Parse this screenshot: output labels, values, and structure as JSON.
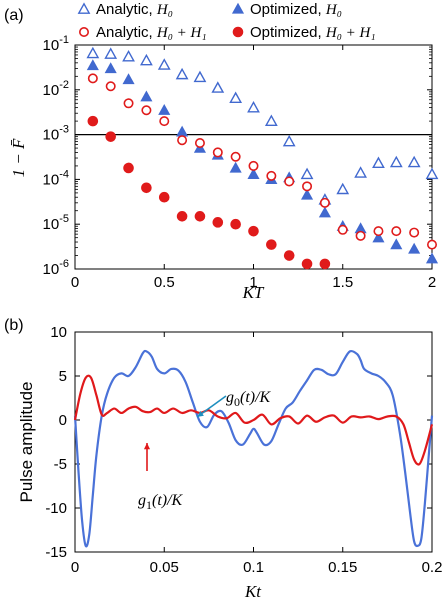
{
  "chart_data": [
    {
      "panel_label": "(a)",
      "type": "scatter",
      "xlabel": "KT",
      "ylabel": "1 − F̄",
      "xlim": [
        0,
        2
      ],
      "ylim": [
        1e-06,
        0.1
      ],
      "yscale": "log",
      "x_ticks": [
        "0",
        "0.5",
        "1",
        "1.5",
        "2"
      ],
      "x_tick_values": [
        0,
        0.5,
        1,
        1.5,
        2
      ],
      "y_ticks": [
        "10-6",
        "10-5",
        "10-4",
        "10-3",
        "10-2",
        "10-1"
      ],
      "y_tick_values": [
        1e-06,
        1e-05,
        0.0001,
        0.001,
        0.01,
        0.1
      ],
      "reference_line": 0.001,
      "legend_placement": "top, two columns",
      "series": [
        {
          "name": "Analytic, H0",
          "name_text": "Analytic, ",
          "name_math": "H₀",
          "marker": "open-triangle",
          "color": "#4169cf",
          "x": [
            0.1,
            0.2,
            0.3,
            0.4,
            0.5,
            0.6,
            0.7,
            0.8,
            0.9,
            1.0,
            1.1,
            1.2,
            1.3,
            1.4,
            1.5,
            1.6,
            1.7,
            1.8,
            1.9,
            2.0
          ],
          "y": [
            0.065,
            0.063,
            0.055,
            0.045,
            0.036,
            0.022,
            0.019,
            0.011,
            0.0065,
            0.004,
            0.002,
            0.0007,
            0.00013,
            3.5e-05,
            6e-05,
            0.00014,
            0.00023,
            0.00024,
            0.00024,
            0.00013
          ]
        },
        {
          "name": "Optimized, H0",
          "name_text": "Optimized, ",
          "name_math": "H₀",
          "marker": "filled-triangle",
          "color": "#4169cf",
          "x": [
            0.1,
            0.2,
            0.3,
            0.4,
            0.5,
            0.6,
            0.7,
            0.8,
            0.9,
            1.0,
            1.1,
            1.2,
            1.3,
            1.4,
            1.5,
            1.6,
            1.7,
            1.8,
            1.9,
            2.0
          ],
          "y": [
            0.035,
            0.03,
            0.017,
            0.007,
            0.0035,
            0.00115,
            0.0005,
            0.00035,
            0.00018,
            0.00013,
            0.0001,
            0.00011,
            4.5e-05,
            1.8e-05,
            9e-06,
            8e-06,
            5e-06,
            3.5e-06,
            2.8e-06,
            1.7e-06
          ]
        },
        {
          "name": "Analytic, H0 + H1",
          "name_text": "Analytic, ",
          "name_math": "H₀ + H₁",
          "marker": "open-circle",
          "color": "#e01b1b",
          "x": [
            0.1,
            0.2,
            0.3,
            0.4,
            0.5,
            0.6,
            0.7,
            0.8,
            0.9,
            1.0,
            1.1,
            1.2,
            1.3,
            1.4,
            1.5,
            1.6,
            1.7,
            1.8,
            1.9,
            2.0
          ],
          "y": [
            0.018,
            0.012,
            0.005,
            0.0035,
            0.002,
            0.00075,
            0.00065,
            0.0004,
            0.00032,
            0.0002,
            0.00012,
            9e-05,
            7e-05,
            3e-05,
            7.5e-06,
            5.5e-06,
            7e-06,
            7e-06,
            6.5e-06,
            3.5e-06
          ]
        },
        {
          "name": "Optimized, H0 + H1",
          "name_text": "Optimized, ",
          "name_math": "H₀ + H₁",
          "marker": "filled-circle",
          "color": "#e01b1b",
          "x": [
            0.1,
            0.2,
            0.3,
            0.4,
            0.5,
            0.6,
            0.7,
            0.8,
            0.9,
            1.0,
            1.1,
            1.2,
            1.3,
            1.4
          ],
          "y": [
            0.002,
            0.0009,
            0.00018,
            6.5e-05,
            4e-05,
            1.5e-05,
            1.5e-05,
            1.1e-05,
            1e-05,
            7e-06,
            3.5e-06,
            2e-06,
            1.3e-06,
            1.3e-06
          ]
        }
      ]
    },
    {
      "panel_label": "(b)",
      "type": "line",
      "xlabel": "Kt",
      "ylabel": "Pulse amplitude",
      "xlim": [
        0,
        0.2
      ],
      "ylim": [
        -15,
        10
      ],
      "x_ticks": [
        "0",
        "0.05",
        "0.1",
        "0.15",
        "0.2"
      ],
      "x_tick_values": [
        0,
        0.05,
        0.1,
        0.15,
        0.2
      ],
      "y_ticks": [
        "-15",
        "-10",
        "-5",
        "0",
        "5",
        "10"
      ],
      "y_tick_values": [
        -15,
        -10,
        -5,
        0,
        5,
        10
      ],
      "series": [
        {
          "name": "g0(t)/K",
          "color": "#4a72d8",
          "x": [
            0,
            0.002,
            0.004,
            0.006,
            0.008,
            0.01,
            0.012,
            0.015,
            0.018,
            0.022,
            0.026,
            0.03,
            0.034,
            0.038,
            0.04,
            0.043,
            0.046,
            0.05,
            0.054,
            0.058,
            0.062,
            0.066,
            0.07,
            0.074,
            0.078,
            0.082,
            0.086,
            0.09,
            0.094,
            0.098,
            0.1,
            0.102,
            0.106,
            0.11,
            0.114,
            0.118,
            0.122,
            0.126,
            0.13,
            0.134,
            0.138,
            0.142,
            0.146,
            0.15,
            0.154,
            0.158,
            0.16,
            0.162,
            0.166,
            0.17,
            0.174,
            0.178,
            0.182,
            0.185,
            0.188,
            0.19,
            0.192,
            0.194,
            0.196,
            0.198,
            0.2
          ],
          "y": [
            0.5,
            -6,
            -11.5,
            -14.3,
            -13,
            -8.5,
            -4,
            0.5,
            3,
            4.8,
            5.3,
            5,
            6,
            7.6,
            7.8,
            7.2,
            5.8,
            5.3,
            5.8,
            5.6,
            4.3,
            2,
            -0.2,
            -0.8,
            0.6,
            1,
            -0.3,
            -2.3,
            -2.8,
            -1.6,
            -1,
            -1.5,
            -2.8,
            -2.4,
            -0.5,
            1.3,
            2,
            3.3,
            4.5,
            5.7,
            5.7,
            5.2,
            5.2,
            6.6,
            7.8,
            7.5,
            6.8,
            5.8,
            5.3,
            5,
            4.3,
            2.8,
            -1.5,
            -6,
            -11,
            -13.8,
            -14.3,
            -13.5,
            -9.5,
            -4.5,
            0.5
          ]
        },
        {
          "name": "g1(t)/K",
          "color": "#e0191b",
          "x": [
            0,
            0.003,
            0.006,
            0.009,
            0.012,
            0.015,
            0.018,
            0.022,
            0.026,
            0.03,
            0.034,
            0.038,
            0.042,
            0.046,
            0.05,
            0.055,
            0.06,
            0.065,
            0.07,
            0.075,
            0.08,
            0.085,
            0.09,
            0.095,
            0.1,
            0.105,
            0.11,
            0.115,
            0.12,
            0.125,
            0.13,
            0.135,
            0.14,
            0.145,
            0.15,
            0.155,
            0.16,
            0.165,
            0.17,
            0.175,
            0.18,
            0.184,
            0.187,
            0.19,
            0.193,
            0.196,
            0.2
          ],
          "y": [
            0,
            3,
            4.8,
            4.8,
            2.8,
            0.6,
            0.8,
            1.3,
            0.8,
            1.3,
            1.5,
            1.0,
            0.9,
            1.3,
            0.8,
            1.3,
            0.8,
            1.1,
            0.8,
            1.1,
            0.4,
            0.2,
            0.8,
            -0.3,
            0.0,
            0.6,
            -0.5,
            0.2,
            0.4,
            -0.4,
            0.5,
            -0.2,
            0.3,
            0.5,
            -0.3,
            0.4,
            0.3,
            0.4,
            0.1,
            0.4,
            0.4,
            -0.5,
            -2.5,
            -4.5,
            -5.0,
            -3.5,
            -0.5
          ]
        }
      ],
      "annotations": [
        {
          "text": "g0(t)/K",
          "color": "#000000",
          "arrow_color": "#1e8fbf",
          "points_to_series": "g0(t)/K"
        },
        {
          "text": "g1(t)/K",
          "color": "#000000",
          "arrow_color": "#e0191b",
          "points_to_series": "g1(t)/K"
        }
      ]
    }
  ]
}
